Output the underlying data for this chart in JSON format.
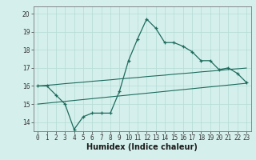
{
  "xlabel": "Humidex (Indice chaleur)",
  "background_color": "#d5f0ec",
  "grid_color": "#b8ddd8",
  "line_color": "#1e6b5e",
  "hours": [
    0,
    1,
    2,
    3,
    4,
    5,
    6,
    7,
    8,
    9,
    10,
    11,
    12,
    13,
    14,
    15,
    16,
    17,
    18,
    19,
    20,
    21,
    22,
    23
  ],
  "humidex": [
    16.0,
    16.0,
    15.5,
    15.0,
    13.6,
    14.3,
    14.5,
    14.5,
    14.5,
    15.7,
    17.4,
    18.6,
    19.7,
    19.2,
    18.4,
    18.4,
    18.2,
    17.9,
    17.4,
    17.4,
    16.9,
    17.0,
    16.7,
    16.2
  ],
  "trend_upper": [
    16.0,
    16.04,
    16.08,
    16.13,
    16.17,
    16.21,
    16.26,
    16.3,
    16.34,
    16.39,
    16.43,
    16.47,
    16.52,
    16.56,
    16.6,
    16.65,
    16.69,
    16.73,
    16.78,
    16.82,
    16.86,
    16.91,
    16.95,
    16.99
  ],
  "trend_lower": [
    15.0,
    15.05,
    15.1,
    15.15,
    15.2,
    15.25,
    15.3,
    15.35,
    15.4,
    15.45,
    15.5,
    15.55,
    15.6,
    15.65,
    15.7,
    15.75,
    15.8,
    15.85,
    15.9,
    15.95,
    16.0,
    16.05,
    16.1,
    16.15
  ],
  "ylim": [
    13.5,
    20.4
  ],
  "yticks": [
    14,
    15,
    16,
    17,
    18,
    19,
    20
  ],
  "xticks": [
    0,
    1,
    2,
    3,
    4,
    5,
    6,
    7,
    8,
    9,
    10,
    11,
    12,
    13,
    14,
    15,
    16,
    17,
    18,
    19,
    20,
    21,
    22,
    23
  ],
  "tick_fontsize": 5.5,
  "xlabel_fontsize": 7
}
